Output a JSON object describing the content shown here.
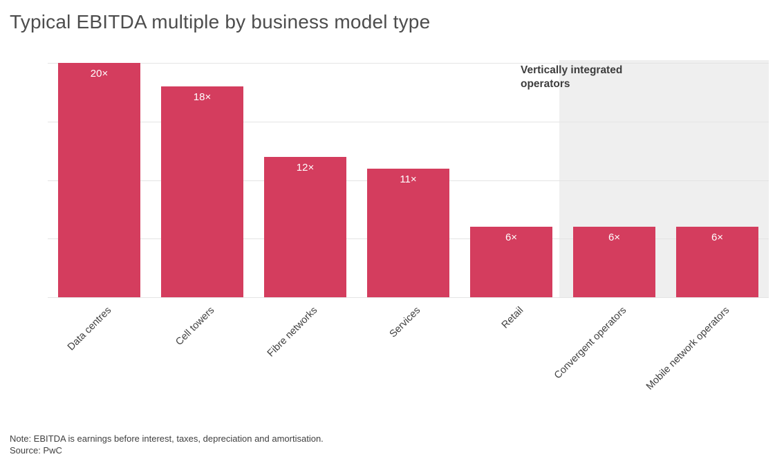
{
  "title": "Typical EBITDA multiple by business model type",
  "note": "Note: EBITDA is earnings before interest, taxes, depreciation and amortisation.",
  "source": "Source: PwC",
  "colors": {
    "bar": "#d43d5e",
    "highlight_panel": "#efefef",
    "gridline": "#e4e4e4",
    "title_text": "#4d4d4d",
    "axis_label_text": "#404040",
    "bar_value_text": "#ffffff",
    "annotation_text": "#3d3d3d"
  },
  "chart_data": {
    "type": "bar",
    "title": "Typical EBITDA multiple by business model type",
    "categories": [
      "Data centres",
      "Cell towers",
      "Fibre networks",
      "Services",
      "Retail",
      "Convergent operators",
      "Mobile network operators"
    ],
    "values": [
      20,
      18,
      12,
      11,
      6,
      6,
      6
    ],
    "value_labels": [
      "20×",
      "18×",
      "12×",
      "11×",
      "6×",
      "6×",
      "6×"
    ],
    "xlabel": "",
    "ylabel": "",
    "ylim": [
      0,
      20
    ],
    "grid_interval": 5,
    "grid": true,
    "y_tick_labels_shown": false,
    "highlight_region": {
      "label": "Vertically integrated operators",
      "categories": [
        "Convergent operators",
        "Mobile network operators"
      ]
    }
  }
}
